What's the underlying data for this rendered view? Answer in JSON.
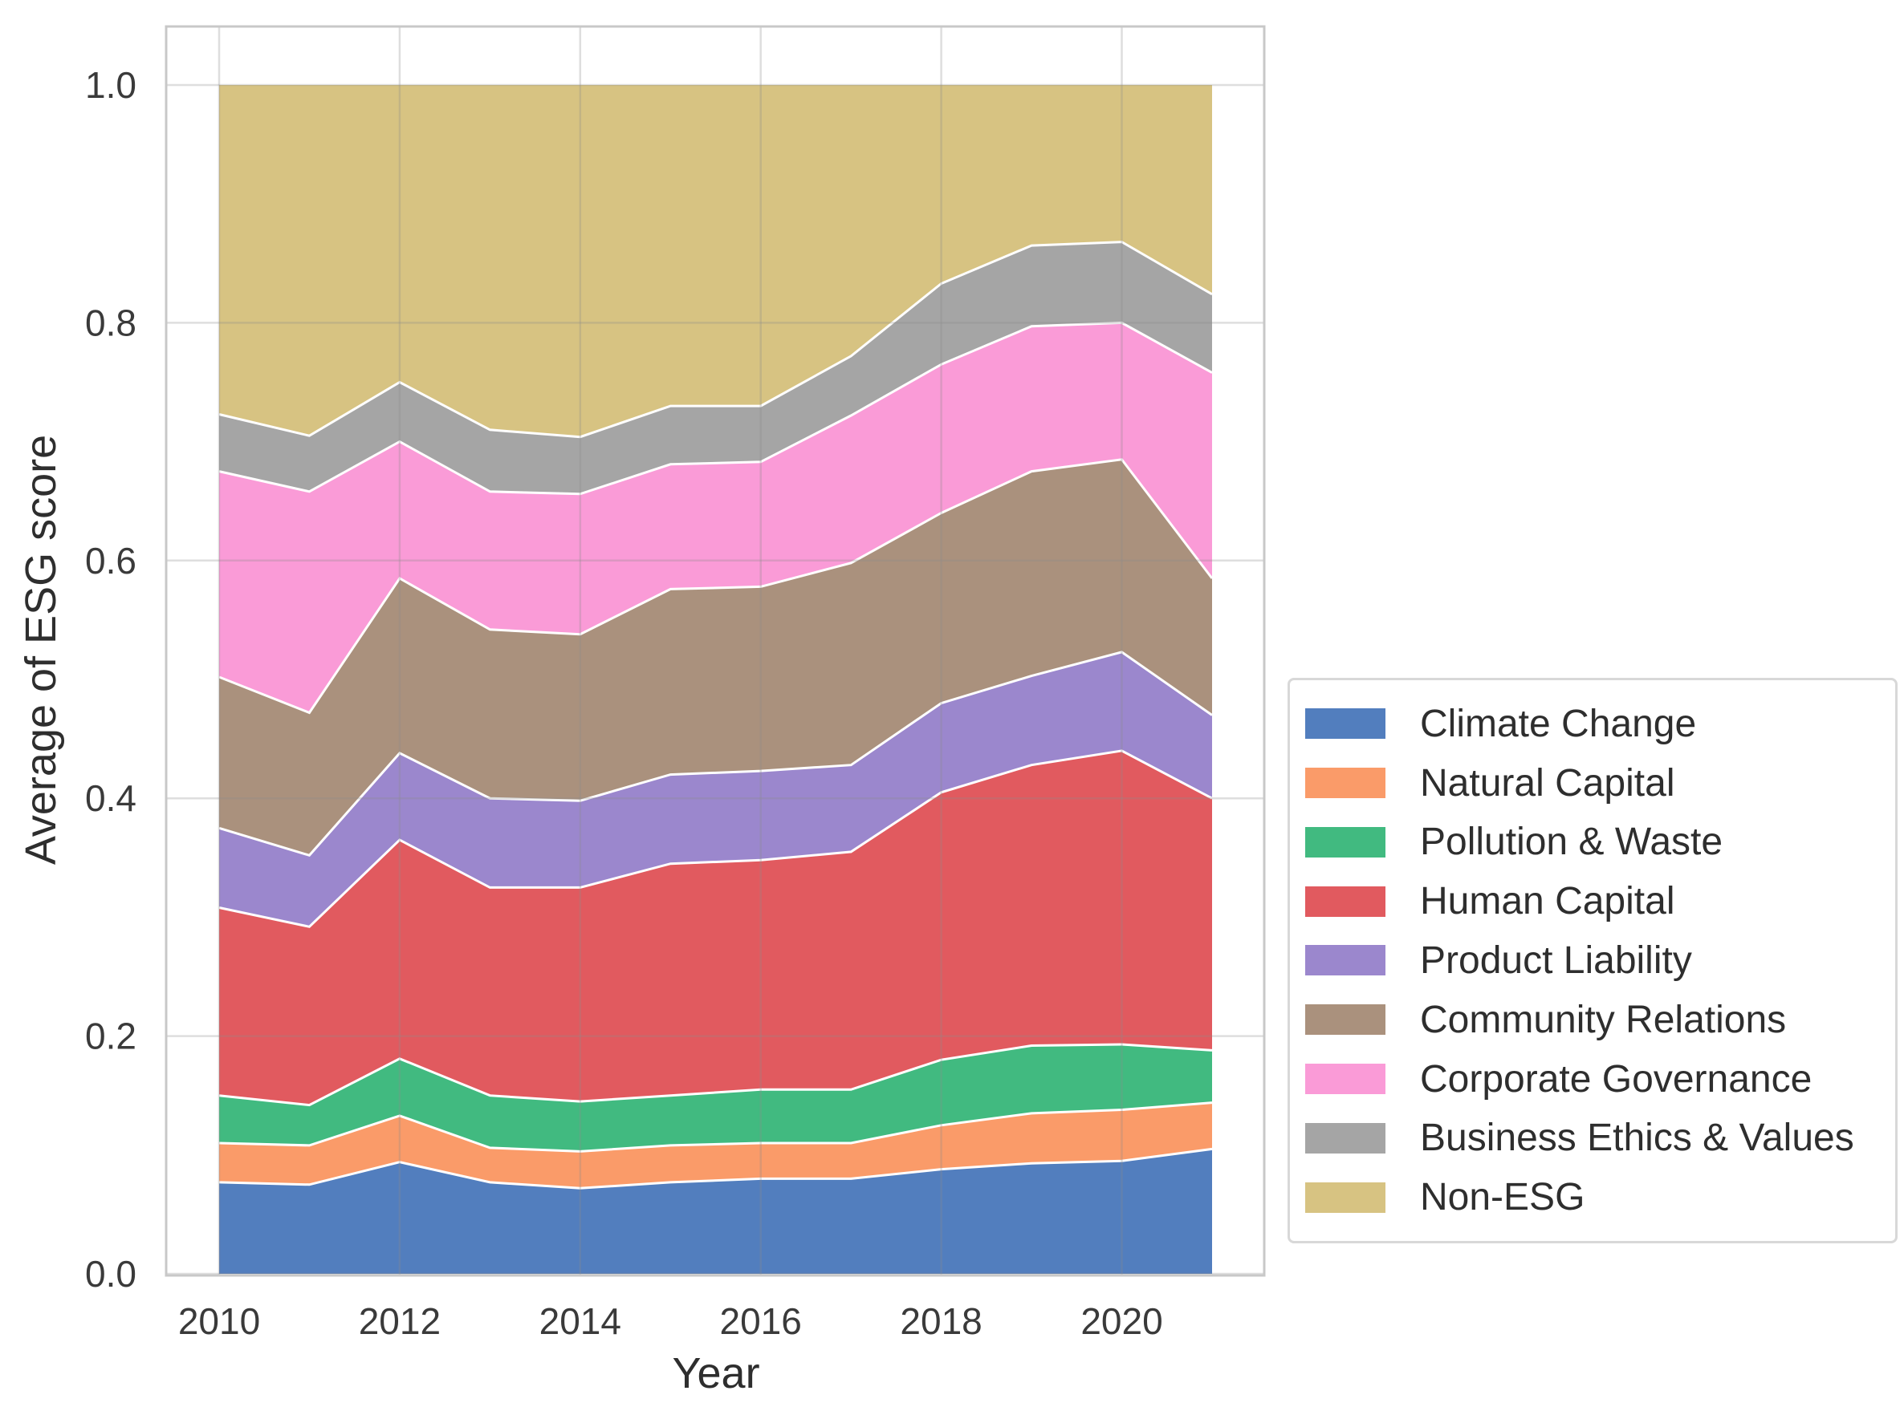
{
  "chart_data": {
    "type": "area",
    "stacked": true,
    "title": "",
    "xlabel": "Year",
    "ylabel": "Average of ESG score",
    "x": [
      2010,
      2011,
      2012,
      2013,
      2014,
      2015,
      2016,
      2017,
      2018,
      2019,
      2020,
      2021
    ],
    "xticks": [
      2010,
      2012,
      2014,
      2016,
      2018,
      2020
    ],
    "xticklabels": [
      "2010",
      "2012",
      "2014",
      "2016",
      "2018",
      "2020"
    ],
    "yticks": [
      0.0,
      0.2,
      0.4,
      0.6,
      0.8,
      1.0
    ],
    "yticklabels": [
      "0.0",
      "0.2",
      "0.4",
      "0.6",
      "0.8",
      "1.0"
    ],
    "xlim": [
      2009.41,
      2021.58
    ],
    "ylim": [
      0,
      1.045
    ],
    "grid": true,
    "legend_position": "center right",
    "series": [
      {
        "name": "Climate Change",
        "color": "#527EBE",
        "values": [
          0.077,
          0.075,
          0.094,
          0.077,
          0.072,
          0.077,
          0.08,
          0.08,
          0.088,
          0.093,
          0.095,
          0.105
        ]
      },
      {
        "name": "Natural Capital",
        "color": "#FA9B69",
        "values": [
          0.033,
          0.033,
          0.039,
          0.029,
          0.031,
          0.031,
          0.03,
          0.03,
          0.037,
          0.042,
          0.043,
          0.039
        ]
      },
      {
        "name": "Pollution & Waste",
        "color": "#41BA80",
        "values": [
          0.04,
          0.034,
          0.048,
          0.044,
          0.042,
          0.042,
          0.045,
          0.045,
          0.055,
          0.057,
          0.055,
          0.044
        ]
      },
      {
        "name": "Human Capital",
        "color": "#E15A5F",
        "values": [
          0.158,
          0.15,
          0.184,
          0.175,
          0.18,
          0.195,
          0.193,
          0.2,
          0.225,
          0.236,
          0.247,
          0.212
        ]
      },
      {
        "name": "Product Liability",
        "color": "#9B87CD",
        "values": [
          0.067,
          0.06,
          0.073,
          0.075,
          0.073,
          0.075,
          0.075,
          0.073,
          0.075,
          0.075,
          0.083,
          0.07
        ]
      },
      {
        "name": "Community Relations",
        "color": "#AA917D",
        "values": [
          0.127,
          0.12,
          0.147,
          0.142,
          0.14,
          0.156,
          0.155,
          0.17,
          0.16,
          0.172,
          0.162,
          0.115
        ]
      },
      {
        "name": "Corporate Governance",
        "color": "#FA9BD7",
        "values": [
          0.173,
          0.186,
          0.115,
          0.116,
          0.118,
          0.105,
          0.105,
          0.124,
          0.125,
          0.122,
          0.115,
          0.173
        ]
      },
      {
        "name": "Business Ethics & Values",
        "color": "#A5A5A5",
        "values": [
          0.048,
          0.047,
          0.05,
          0.052,
          0.048,
          0.049,
          0.047,
          0.05,
          0.068,
          0.068,
          0.068,
          0.066
        ]
      },
      {
        "name": "Non-ESG",
        "color": "#D7C382",
        "values": [
          0.277,
          0.295,
          0.25,
          0.29,
          0.296,
          0.27,
          0.27,
          0.228,
          0.167,
          0.135,
          0.132,
          0.176
        ]
      }
    ]
  },
  "style": {
    "frame_color": "#c8c8c8",
    "grid_color": "#8c8c8c",
    "separator_color": "#ffffff",
    "tick_color": "#3a3a3a"
  }
}
